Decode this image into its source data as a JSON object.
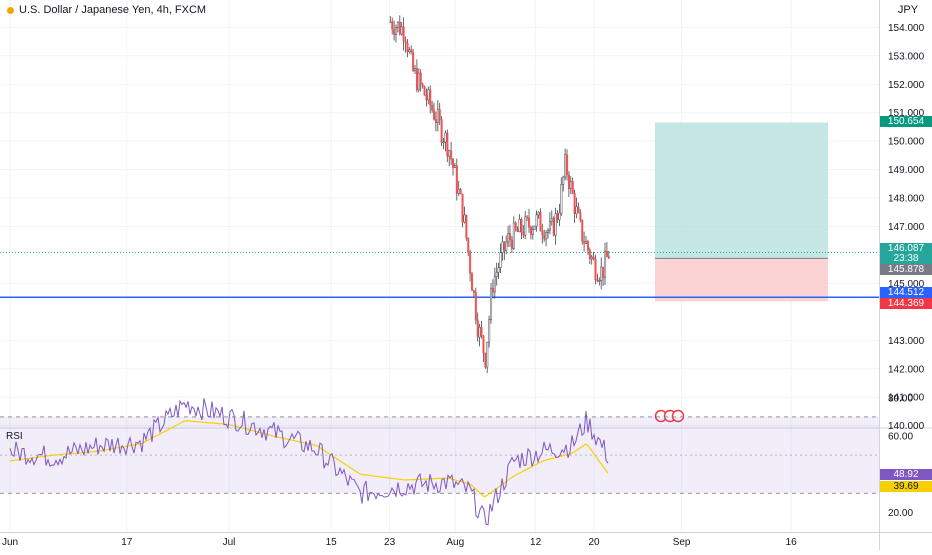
{
  "header": {
    "symbol_title": "U.S. Dollar / Japanese Yen, 4h, FXCM",
    "currency": "JPY"
  },
  "indicator": {
    "label": "RSI"
  },
  "price_axis": {
    "ticks": [
      "154.000",
      "153.000",
      "152.000",
      "151.000",
      "150.000",
      "149.000",
      "148.000",
      "147.000",
      "145.000",
      "143.000",
      "142.000",
      "141.000",
      "140.000"
    ],
    "ticks_values": [
      154,
      153,
      152,
      151,
      150,
      149,
      148,
      147,
      145,
      143,
      142,
      141,
      140
    ]
  },
  "rsi_axis": {
    "ticks": [
      "80.00",
      "60.00",
      "20.00"
    ],
    "ticks_values": [
      80,
      60,
      20
    ]
  },
  "time_axis": {
    "labels": [
      "Jun",
      "17",
      "Jul",
      "15",
      "23",
      "Aug",
      "12",
      "20",
      "Sep",
      "16"
    ],
    "day_offsets": [
      0,
      16,
      30,
      44,
      52,
      61,
      72,
      80,
      92,
      107
    ]
  },
  "price_tags": {
    "target": {
      "text": "150.654",
      "color": "#089981"
    },
    "last": {
      "text": "146.087",
      "color": "#26a69a"
    },
    "countdown": {
      "text": "23:38",
      "color": "#26a69a"
    },
    "entry": {
      "text": "145.878",
      "color": "#787b86"
    },
    "line": {
      "text": "144.512",
      "color": "#2962ff"
    },
    "stop": {
      "text": "144.369",
      "color": "#f23645"
    }
  },
  "rsi_tags": {
    "rsi": {
      "text": "48.92",
      "color": "#7e57c2"
    },
    "ma": {
      "text": "39.69",
      "color": "#f7d002"
    }
  },
  "position": {
    "entry": 145.878,
    "target": 150.654,
    "stop": 144.369,
    "profit_color": "#b2dfdb",
    "loss_color": "#fccbcd"
  },
  "horizontal_line": {
    "value": 144.512,
    "color": "#2962ff"
  },
  "colors": {
    "up": "#26a69a",
    "down": "#ef5350",
    "candle": "#434651",
    "rsi": "#7e57c2",
    "rsi_ma": "#f7d002",
    "grid": "#f0f3fa"
  },
  "chart_data": {
    "type": "line",
    "title": "U.S. Dollar / Japanese Yen, 4h, FXCM",
    "ylabel": "JPY",
    "ylim": [
      139.5,
      154.5
    ],
    "series": [
      {
        "name": "U.S. Dollar / Japanese Yen",
        "x": [
          "Jul 23",
          "Jul 25",
          "Jul 26",
          "Jul 29",
          "Jul 31",
          "Aug 2",
          "Aug 4",
          "Aug 5",
          "Aug 6",
          "Aug 8",
          "Aug 10",
          "Aug 12",
          "Aug 14",
          "Aug 15",
          "Aug 16",
          "Aug 18",
          "Aug 20",
          "Aug 21",
          "Aug 22"
        ],
        "values": [
          154.2,
          153.9,
          152.5,
          151.0,
          149.8,
          147.4,
          143.5,
          142.4,
          145.0,
          146.5,
          146.9,
          147.2,
          146.8,
          147.5,
          149.2,
          146.9,
          145.6,
          145.4,
          146.1
        ]
      },
      {
        "name": "RSI",
        "x": [
          "Jun 1",
          "Jun 7",
          "Jun 13",
          "Jun 19",
          "Jun 25",
          "Jul 1",
          "Jul 7",
          "Jul 13",
          "Jul 19",
          "Jul 25",
          "Jul 31",
          "Aug 3",
          "Aug 5",
          "Aug 9",
          "Aug 13",
          "Aug 17",
          "Aug 19",
          "Aug 22"
        ],
        "values": [
          52,
          49,
          55,
          57,
          77,
          70,
          62,
          53,
          30,
          34,
          36,
          31,
          15,
          47,
          52,
          55,
          68,
          49
        ]
      },
      {
        "name": "RSI-based MA",
        "x": [
          "Jun 1",
          "Jun 7",
          "Jun 13",
          "Jun 19",
          "Jun 25",
          "Jul 1",
          "Jul 7",
          "Jul 13",
          "Jul 19",
          "Jul 25",
          "Jul 31",
          "Aug 3",
          "Aug 5",
          "Aug 9",
          "Aug 13",
          "Aug 17",
          "Aug 19",
          "Aug 22"
        ],
        "values": [
          47,
          50,
          52,
          56,
          68,
          66,
          60,
          55,
          40,
          37,
          38,
          35,
          28,
          39,
          47,
          51,
          56,
          40
        ]
      }
    ]
  }
}
